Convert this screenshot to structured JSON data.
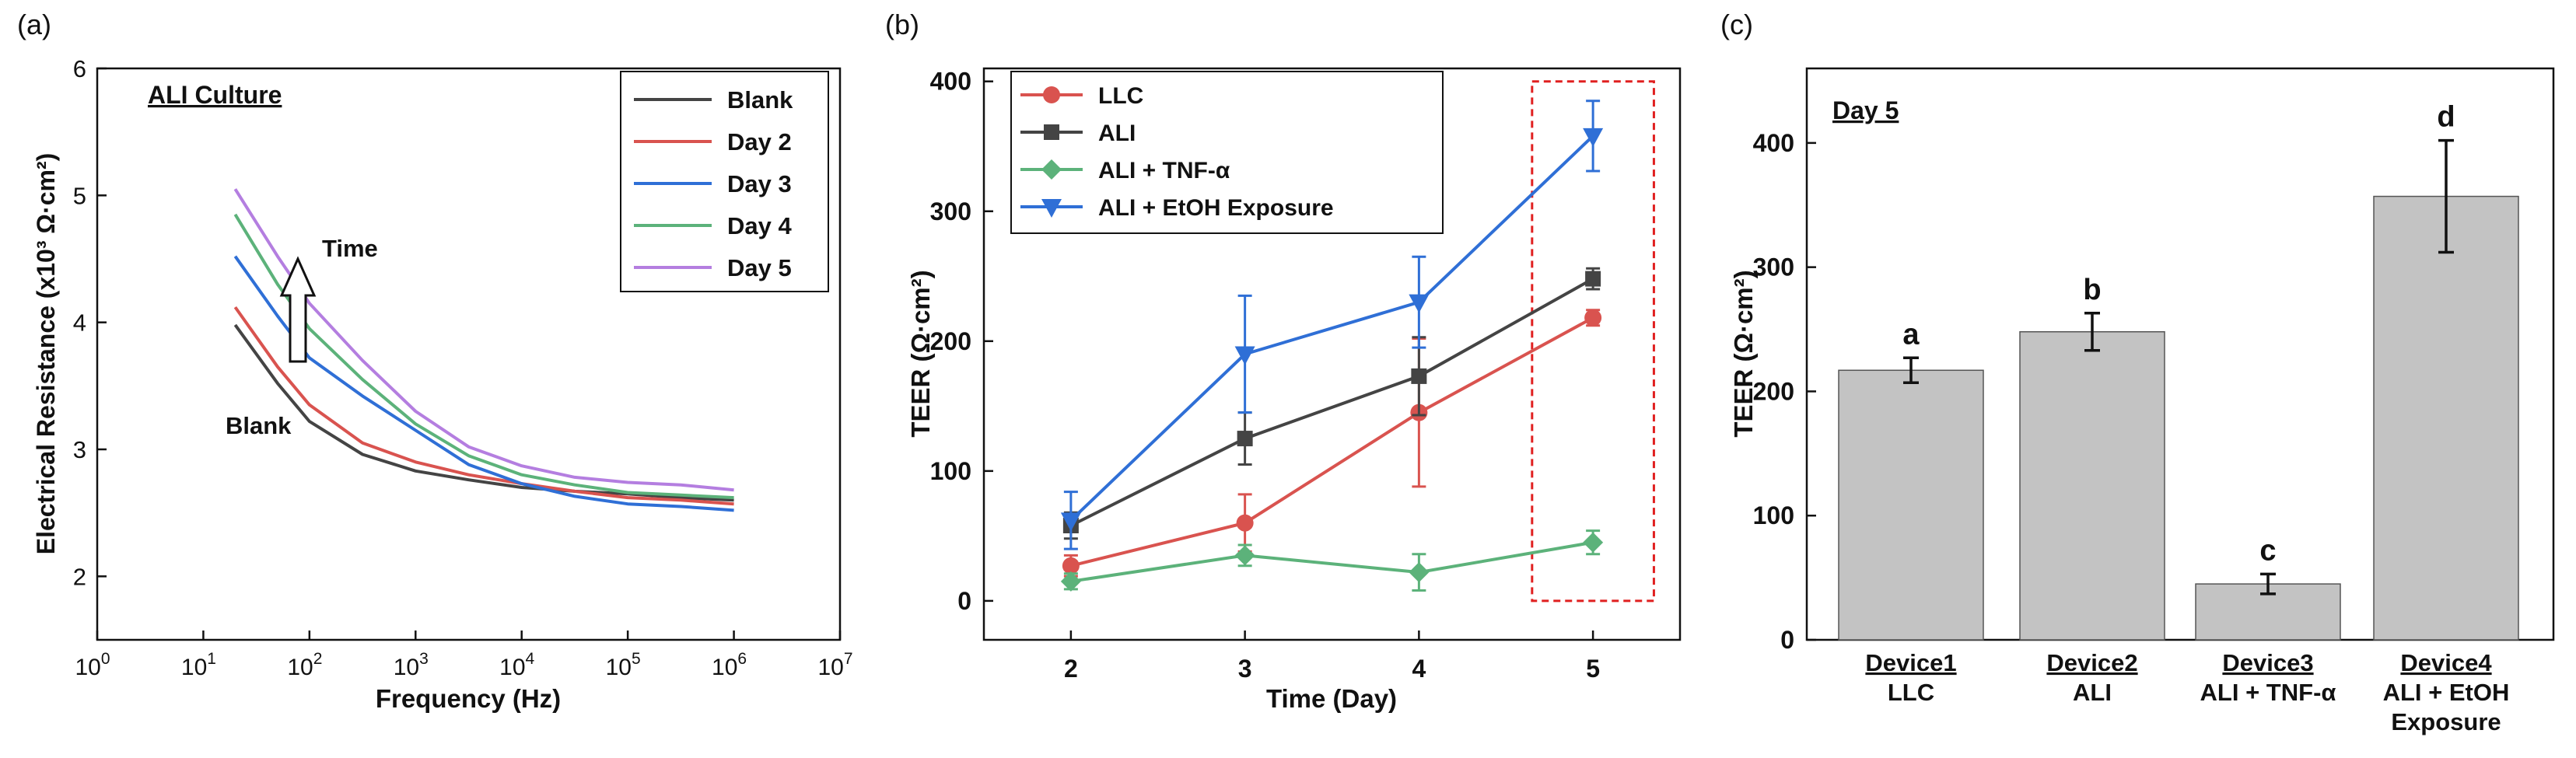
{
  "colors": {
    "blank": "#444444",
    "day2": "#d9534f",
    "day3": "#2f6fd6",
    "day4": "#5cb27a",
    "day5": "#b47ee0",
    "llc": "#d9534f",
    "ali": "#444444",
    "tnf": "#5cb27a",
    "etoh": "#2f6fd6",
    "bar_fill": "#c3c3c3",
    "highlight": "#e02020"
  },
  "chart_data": [
    {
      "panel": "(a)",
      "type": "line",
      "annotation_title": "ALI Culture",
      "xlabel": "Frequency (Hz)",
      "ylabel": "Electrical Resistance (x10³ Ω·cm²)",
      "x_scale": "log",
      "xlim_exp": [
        0,
        7
      ],
      "ylim": [
        1.5,
        6
      ],
      "x_ticks": [
        {
          "base": "10",
          "exp": "0"
        },
        {
          "base": "10",
          "exp": "1"
        },
        {
          "base": "10",
          "exp": "2"
        },
        {
          "base": "10",
          "exp": "3"
        },
        {
          "base": "10",
          "exp": "4"
        },
        {
          "base": "10",
          "exp": "5"
        },
        {
          "base": "10",
          "exp": "6"
        },
        {
          "base": "10",
          "exp": "7"
        }
      ],
      "y_ticks": [
        "2",
        "3",
        "4",
        "5",
        "6"
      ],
      "annotations": {
        "time": "Time",
        "blank": "Blank"
      },
      "legend": {
        "position": "top-right"
      },
      "series": [
        {
          "name": "Blank",
          "color_key": "blank",
          "x_exp": [
            1.3,
            1.7,
            2.0,
            2.5,
            3.0,
            3.5,
            4.0,
            4.5,
            5.0,
            5.5,
            6.0
          ],
          "values": [
            3.98,
            3.52,
            3.22,
            2.96,
            2.83,
            2.76,
            2.7,
            2.67,
            2.65,
            2.62,
            2.6
          ]
        },
        {
          "name": "Day 2",
          "color_key": "day2",
          "x_exp": [
            1.3,
            1.7,
            2.0,
            2.5,
            3.0,
            3.5,
            4.0,
            4.5,
            5.0,
            5.5,
            6.0
          ],
          "values": [
            4.12,
            3.65,
            3.35,
            3.05,
            2.9,
            2.8,
            2.73,
            2.67,
            2.62,
            2.6,
            2.57
          ]
        },
        {
          "name": "Day 3",
          "color_key": "day3",
          "x_exp": [
            1.3,
            1.7,
            2.0,
            2.5,
            3.0,
            3.5,
            4.0,
            4.5,
            5.0,
            5.5,
            6.0
          ],
          "values": [
            4.52,
            4.05,
            3.72,
            3.42,
            3.15,
            2.88,
            2.73,
            2.63,
            2.57,
            2.55,
            2.52
          ]
        },
        {
          "name": "Day 4",
          "color_key": "day4",
          "x_exp": [
            1.3,
            1.7,
            2.0,
            2.5,
            3.0,
            3.5,
            4.0,
            4.5,
            5.0,
            5.5,
            6.0
          ],
          "values": [
            4.85,
            4.3,
            3.95,
            3.55,
            3.2,
            2.95,
            2.8,
            2.72,
            2.66,
            2.64,
            2.62
          ]
        },
        {
          "name": "Day 5",
          "color_key": "day5",
          "x_exp": [
            1.3,
            1.7,
            2.0,
            2.5,
            3.0,
            3.5,
            4.0,
            4.5,
            5.0,
            5.5,
            6.0
          ],
          "values": [
            5.05,
            4.52,
            4.15,
            3.7,
            3.3,
            3.02,
            2.87,
            2.78,
            2.74,
            2.72,
            2.68
          ]
        }
      ]
    },
    {
      "panel": "(b)",
      "type": "line",
      "xlabel": "Time (Day)",
      "ylabel": "TEER (Ω·cm²)",
      "categories": [
        "2",
        "3",
        "4",
        "5"
      ],
      "x": [
        2,
        3,
        4,
        5
      ],
      "xlim": [
        1.5,
        5.5
      ],
      "ylim": [
        -30,
        410
      ],
      "y_ticks": [
        "0",
        "100",
        "200",
        "300",
        "400"
      ],
      "legend": {
        "position": "top-left"
      },
      "highlight_box": {
        "from_day": 4.65,
        "to_day": 5.35,
        "from_teer": 0,
        "to_teer": 400
      },
      "series": [
        {
          "name": "LLC",
          "marker": "circle",
          "color_key": "llc",
          "values": [
            27,
            60,
            145,
            218
          ],
          "errors": [
            8,
            22,
            57,
            6
          ]
        },
        {
          "name": "ALI",
          "marker": "square",
          "color_key": "ali",
          "values": [
            58,
            125,
            173,
            248
          ],
          "errors": [
            10,
            20,
            30,
            8
          ]
        },
        {
          "name": "ALI + TNF-α",
          "marker": "diamond",
          "color_key": "tnf",
          "values": [
            15,
            35,
            22,
            45
          ],
          "errors": [
            6,
            8,
            14,
            9
          ]
        },
        {
          "name": "ALI + EtOH Exposure",
          "marker": "triangle-down",
          "color_key": "etoh",
          "values": [
            62,
            190,
            230,
            358
          ],
          "errors": [
            22,
            45,
            35,
            27
          ]
        }
      ]
    },
    {
      "panel": "(c)",
      "type": "bar",
      "annotation_title": "Day 5",
      "ylabel": "TEER (Ω·cm²)",
      "ylim": [
        0,
        460
      ],
      "y_ticks": [
        "0",
        "100",
        "200",
        "300",
        "400"
      ],
      "categories": [
        {
          "device": "Device1",
          "line2": "LLC",
          "line3": ""
        },
        {
          "device": "Device2",
          "line2": "ALI",
          "line3": ""
        },
        {
          "device": "Device3",
          "line2": "ALI + TNF-α",
          "line3": ""
        },
        {
          "device": "Device4",
          "line2": "ALI + EtOH",
          "line3": "Exposure"
        }
      ],
      "values": [
        217,
        248,
        45,
        357
      ],
      "errors": [
        10,
        15,
        8,
        45
      ],
      "letters": [
        "a",
        "b",
        "c",
        "d"
      ]
    }
  ]
}
